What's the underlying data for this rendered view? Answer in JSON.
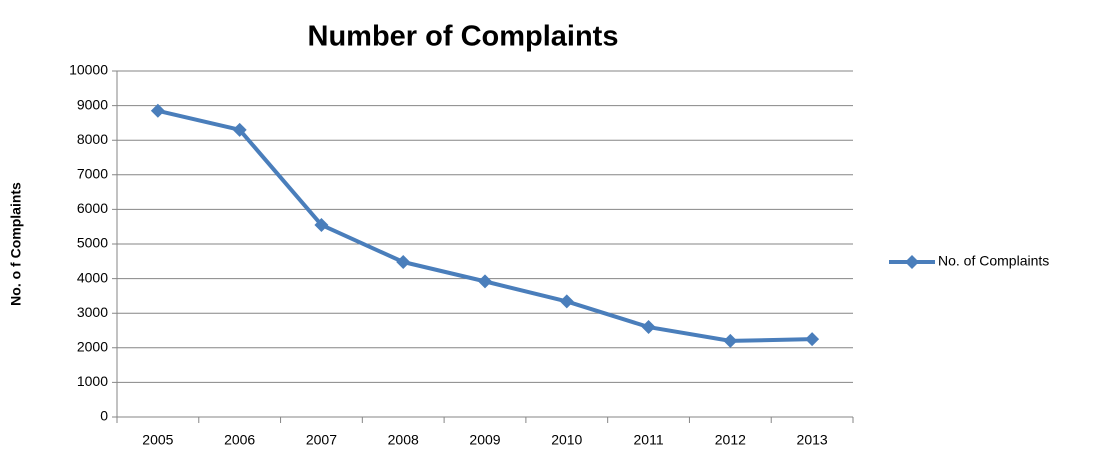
{
  "chart_data": {
    "type": "line",
    "title": "Number of Complaints",
    "y_label": "No. o f Complaints",
    "categories": [
      "2005",
      "2006",
      "2007",
      "2008",
      "2009",
      "2010",
      "2011",
      "2012",
      "2013"
    ],
    "series": [
      {
        "name": "No. of Complaints",
        "color": "#4a7ebb",
        "values": [
          8850,
          8300,
          5550,
          4480,
          3920,
          3340,
          2600,
          2200,
          2250
        ]
      }
    ],
    "ylim": [
      0,
      10000
    ],
    "yticks": [
      0,
      1000,
      2000,
      3000,
      4000,
      5000,
      6000,
      7000,
      8000,
      9000,
      10000
    ],
    "grid": true,
    "legend": "right"
  }
}
